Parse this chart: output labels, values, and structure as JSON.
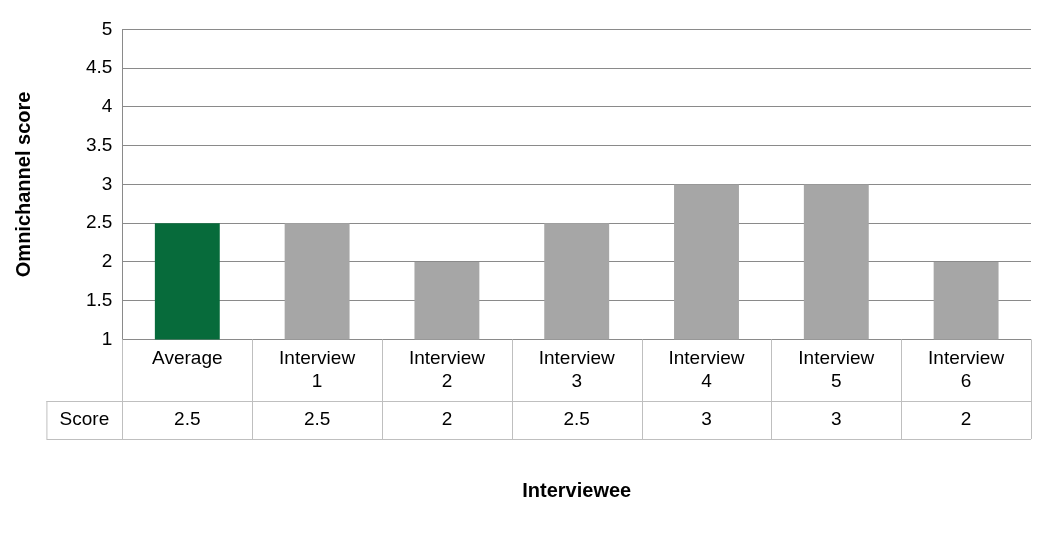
{
  "chart_data": {
    "type": "bar",
    "xlabel": "Interviewee",
    "ylabel": "Omnichannel score",
    "categories": [
      "Average",
      "Interview 1",
      "Interview 2",
      "Interview 3",
      "Interview 4",
      "Interview 5",
      "Interview 6"
    ],
    "series": [
      {
        "name": "Score",
        "values": [
          2.5,
          2.5,
          2,
          2.5,
          3,
          3,
          2
        ],
        "colors": [
          "#076b3b",
          "#a6a6a6",
          "#a6a6a6",
          "#a6a6a6",
          "#a6a6a6",
          "#a6a6a6",
          "#a6a6a6"
        ]
      }
    ],
    "ylim": [
      1,
      5
    ],
    "yticks": [
      1,
      1.5,
      2,
      2.5,
      3,
      3.5,
      4,
      4.5,
      5
    ],
    "grid": "y",
    "legend": false,
    "data_labels": true
  }
}
